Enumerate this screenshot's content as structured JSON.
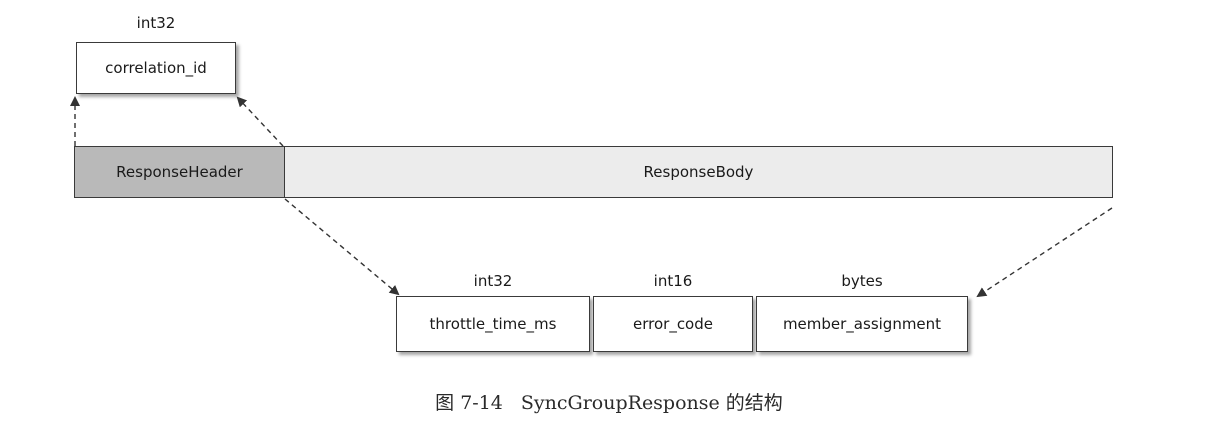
{
  "header_field": {
    "type": "int32",
    "name": "correlation_id"
  },
  "sections": {
    "header": "ResponseHeader",
    "body": "ResponseBody"
  },
  "body_fields": [
    {
      "type": "int32",
      "name": "throttle_time_ms"
    },
    {
      "type": "int16",
      "name": "error_code"
    },
    {
      "type": "bytes",
      "name": "member_assignment"
    }
  ],
  "caption": {
    "number": "图 7-14",
    "title": "SyncGroupResponse 的结构"
  }
}
